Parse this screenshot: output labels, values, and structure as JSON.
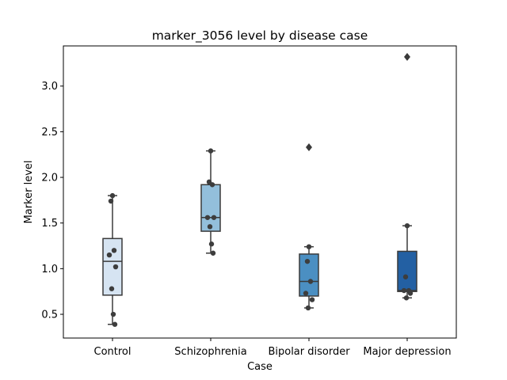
{
  "chart_data": {
    "type": "box",
    "title": "marker_3056 level by disease case",
    "xlabel": "Case",
    "ylabel": "Marker level",
    "ylim": [
      0.24,
      3.44
    ],
    "yticks": [
      "0.5",
      "1.0",
      "1.5",
      "2.0",
      "2.5",
      "3.0"
    ],
    "grid": false,
    "categories": [
      "Control",
      "Schizophrenia",
      "Bipolar disorder",
      "Major depression"
    ],
    "colors": [
      "#d6e4f2",
      "#93bfdb",
      "#4b8fc2",
      "#2360a3"
    ],
    "boxes": [
      {
        "q1": 0.71,
        "median": 1.08,
        "q3": 1.33,
        "whisker_low": 0.39,
        "whisker_high": 1.8,
        "outliers": [],
        "points": [
          1.8,
          1.74,
          1.2,
          1.15,
          1.02,
          0.78,
          0.5,
          0.39
        ]
      },
      {
        "q1": 1.41,
        "median": 1.56,
        "q3": 1.92,
        "whisker_low": 1.17,
        "whisker_high": 2.29,
        "outliers": [],
        "points": [
          2.29,
          1.95,
          1.92,
          1.56,
          1.56,
          1.46,
          1.27,
          1.17
        ]
      },
      {
        "q1": 0.7,
        "median": 0.86,
        "q3": 1.16,
        "whisker_low": 0.57,
        "whisker_high": 1.24,
        "outliers": [
          2.33
        ],
        "points": [
          1.24,
          1.08,
          0.86,
          0.73,
          0.66,
          0.57
        ]
      },
      {
        "q1": 0.75,
        "median": 0.76,
        "q3": 1.19,
        "whisker_low": 0.68,
        "whisker_high": 1.47,
        "outliers": [
          3.32
        ],
        "points": [
          1.47,
          0.91,
          0.76,
          0.76,
          0.73,
          0.68
        ]
      }
    ]
  }
}
